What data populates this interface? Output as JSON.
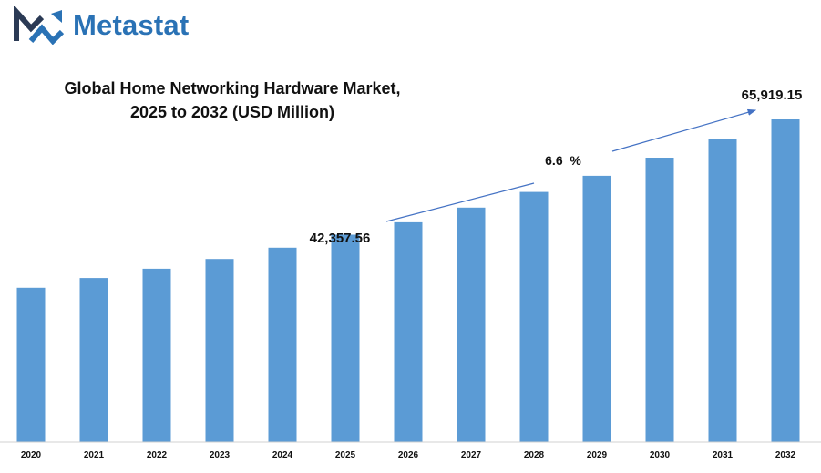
{
  "brand": {
    "name": "Metastat",
    "color": "#2a72b5",
    "dark_color": "#2b3a55",
    "icon": "metastat-logo-icon"
  },
  "chart_data": {
    "type": "bar",
    "title": "Global Home Networking Hardware Market,",
    "subtitle": "2025 to 2032 (USD Million)",
    "categories": [
      "2020",
      "2021",
      "2022",
      "2023",
      "2024",
      "2025",
      "2026",
      "2027",
      "2028",
      "2029",
      "2030",
      "2031",
      "2032"
    ],
    "values": [
      31500,
      33500,
      35400,
      37400,
      39700,
      42357.56,
      44900,
      47900,
      51100,
      54400,
      58100,
      61900,
      65919.15
    ],
    "series_color": "#5b9bd5",
    "ylim": [
      0,
      70000
    ],
    "grid": false,
    "legend": "none",
    "annotations": {
      "start_label": "42,357.56",
      "end_label": "65,919.15",
      "cagr_label": "6.6  %",
      "arrow_color": "#4472c4"
    }
  }
}
